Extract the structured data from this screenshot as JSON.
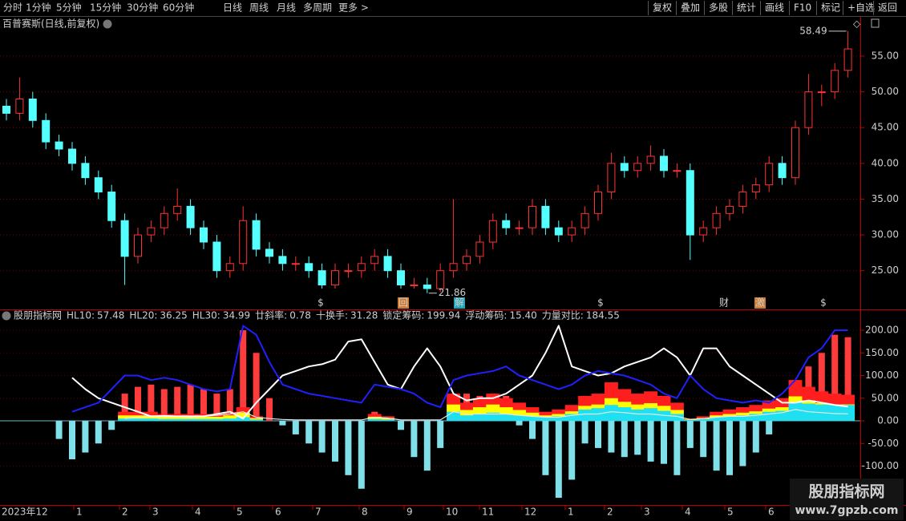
{
  "toolbar": {
    "periods": [
      "分时",
      "1分钟",
      "5分钟",
      "15分钟",
      "30分钟",
      "60分钟",
      "日线",
      "周线",
      "月线",
      "多周期",
      "更多 >"
    ],
    "active_period_index": 6,
    "actions": [
      "复权",
      "叠加",
      "多股",
      "统计",
      "画线",
      "F10",
      "标记",
      "+自选",
      "返回"
    ]
  },
  "chart_title": "百普赛斯(日线,前复权)",
  "indicator_title": "股朋指标网",
  "markers": [
    "$",
    "回",
    "解",
    "$",
    "财",
    "激",
    "$"
  ],
  "x_labels": [
    "2023年12",
    "1",
    "2",
    "3",
    "4",
    "5",
    "6",
    "7",
    "8",
    "9",
    "10",
    "11",
    "12",
    "1",
    "2",
    "3",
    "4",
    "5",
    "6"
  ],
  "watermark": {
    "name": "股朋指标网",
    "url": "www.7gpzb.com"
  },
  "chart_data": [
    {
      "type": "candlestick",
      "up_color": "#ff3232",
      "down_color": "#54ffff",
      "grid": true,
      "ylim": [
        19.7,
        60.6
      ],
      "yticks": [
        {
          "value": 25,
          "label": "25.00"
        },
        {
          "value": 30,
          "label": "30.00"
        },
        {
          "value": 35,
          "label": "35.00"
        },
        {
          "value": 40,
          "label": "40.00"
        },
        {
          "value": 45,
          "label": "45.00"
        },
        {
          "value": 50,
          "label": "50.00"
        },
        {
          "value": 55,
          "label": "55.00"
        }
      ],
      "high_label": 58.49,
      "low_label": 21.86,
      "open": [
        48,
        47,
        49,
        46,
        43,
        42,
        40,
        38,
        36,
        32,
        27,
        30,
        31,
        33,
        34,
        31,
        29,
        25,
        26,
        32,
        28,
        27,
        26,
        26,
        25,
        23,
        25,
        25,
        26,
        27,
        25,
        23,
        23,
        22.5,
        25,
        26,
        27,
        29,
        32,
        31,
        31,
        34,
        31,
        30,
        31,
        33,
        36,
        40,
        39,
        40,
        41,
        39,
        39,
        30,
        31,
        33,
        34,
        36,
        37,
        40,
        38,
        45,
        50,
        50,
        53
      ],
      "high": [
        49,
        52,
        50,
        47,
        44,
        43,
        41,
        39,
        37,
        33,
        31,
        32,
        34,
        36.5,
        35,
        32,
        30,
        27,
        34,
        33,
        29,
        28,
        27,
        27,
        26,
        26,
        26,
        27,
        28,
        28,
        26,
        24,
        24,
        26,
        35,
        28,
        30,
        33,
        33,
        32,
        35,
        35,
        32,
        32,
        34,
        37,
        41.5,
        41,
        41,
        42.5,
        42,
        40,
        40,
        32,
        34,
        35,
        37,
        38,
        41,
        41,
        46,
        52.5,
        51,
        54,
        58.49
      ],
      "low": [
        46,
        46,
        45,
        42,
        41,
        39,
        37,
        35,
        31,
        23,
        26,
        29,
        30,
        32,
        30,
        28,
        24,
        24,
        25,
        27,
        26,
        25,
        25,
        24,
        22.5,
        22.5,
        24,
        24,
        25,
        24,
        22.5,
        22.5,
        21.86,
        22,
        24,
        25,
        26,
        28,
        30,
        30,
        30,
        30,
        29,
        29,
        30,
        32,
        35,
        38,
        38,
        39,
        38,
        38,
        26.5,
        29,
        30,
        32,
        33,
        35,
        36,
        37,
        37,
        44,
        48,
        49,
        52
      ],
      "close": [
        47,
        49,
        46,
        43,
        42,
        40,
        38,
        36,
        32,
        27,
        30,
        31,
        33,
        34,
        31,
        29,
        25,
        26,
        32,
        28,
        27,
        26,
        26,
        25,
        23,
        25,
        25,
        26,
        27,
        25,
        23,
        23,
        22.5,
        25,
        26,
        27,
        29,
        32,
        31,
        31,
        34,
        31,
        30,
        31,
        33,
        36,
        40,
        39,
        40,
        41,
        39,
        39,
        30,
        31,
        33,
        34,
        36,
        37,
        40,
        38,
        45,
        50,
        50,
        53,
        56
      ]
    },
    {
      "type": "indicator",
      "grid": true,
      "ylim": [
        -182.3,
        242.5
      ],
      "yticks": [
        {
          "value": -100,
          "label": "-100.00"
        },
        {
          "value": -50,
          "label": "-50.00"
        },
        {
          "value": 0,
          "label": "0.00"
        },
        {
          "value": 50,
          "label": "50.00"
        },
        {
          "value": 100,
          "label": "100.00"
        },
        {
          "value": 150,
          "label": "150.00"
        },
        {
          "value": 200,
          "label": "200.00"
        }
      ],
      "series": [
        {
          "name": "HL10:",
          "color": "#ff3232",
          "mark_color": "#ff1e1e",
          "style": "area",
          "last": 57.48,
          "values": [
            0,
            0,
            0,
            0,
            0,
            0,
            0,
            0,
            0,
            20,
            20,
            20,
            15,
            15,
            15,
            15,
            15,
            20,
            30,
            10,
            0,
            0,
            0,
            0,
            0,
            0,
            0,
            0,
            15,
            10,
            0,
            0,
            0,
            0,
            60,
            40,
            50,
            60,
            50,
            40,
            30,
            20,
            25,
            35,
            55,
            60,
            85,
            70,
            60,
            65,
            55,
            40,
            5,
            10,
            20,
            25,
            30,
            35,
            45,
            50,
            90,
            75,
            65,
            60,
            57.48
          ]
        },
        {
          "name": "HL20:",
          "color": "#ffff00",
          "mark_color": "#ffff00",
          "style": "area",
          "last": 36.25,
          "values": [
            0,
            0,
            0,
            0,
            0,
            0,
            0,
            0,
            0,
            12,
            12,
            12,
            9,
            9,
            9,
            9,
            9,
            12,
            18,
            6,
            0,
            0,
            0,
            0,
            0,
            0,
            0,
            0,
            9,
            6,
            0,
            0,
            0,
            0,
            36,
            24,
            30,
            36,
            30,
            24,
            18,
            12,
            15,
            21,
            33,
            36,
            50,
            42,
            36,
            39,
            33,
            24,
            3,
            6,
            12,
            15,
            18,
            21,
            27,
            30,
            54,
            45,
            39,
            36,
            36.25
          ]
        },
        {
          "name": "HL30:",
          "color": "#ff50ff",
          "mark_color": "#1ee0f0",
          "style": "area",
          "last": 34.99,
          "values": [
            0,
            0,
            0,
            0,
            0,
            0,
            0,
            0,
            0,
            5,
            5,
            5,
            4,
            4,
            4,
            4,
            4,
            5,
            8,
            3,
            0,
            0,
            0,
            0,
            0,
            0,
            0,
            0,
            4,
            3,
            0,
            0,
            0,
            0,
            20,
            12,
            15,
            18,
            15,
            12,
            10,
            8,
            10,
            15,
            25,
            28,
            35,
            30,
            25,
            28,
            22,
            15,
            2,
            4,
            8,
            10,
            12,
            15,
            20,
            22,
            40,
            38,
            36,
            35,
            34.99
          ]
        },
        {
          "name": "廿斜率:",
          "color": "#00ff00",
          "style": "none",
          "last": 0.78
        },
        {
          "name": "十换手:",
          "color": "#ffffff",
          "mark_color": "#ffffff",
          "style": "line",
          "last": 31.28,
          "values": [
            null,
            null,
            null,
            null,
            null,
            95,
            70,
            50,
            40,
            30,
            20,
            10,
            10,
            10,
            10,
            10,
            15,
            20,
            5,
            40,
            70,
            100,
            110,
            120,
            125,
            135,
            175,
            180,
            130,
            80,
            70,
            120,
            160,
            120,
            60,
            45,
            50,
            50,
            60,
            80,
            100,
            150,
            210,
            120,
            110,
            100,
            105,
            120,
            130,
            140,
            160,
            140,
            100,
            160,
            160,
            120,
            100,
            80,
            60,
            40,
            40,
            45,
            40,
            35,
            31.28
          ]
        },
        {
          "name": "锁定筹码:",
          "color": "#3a3aff",
          "mark_color": "#2020ff",
          "style": "line",
          "last": 199.94,
          "values": [
            null,
            null,
            null,
            null,
            null,
            20,
            30,
            40,
            70,
            100,
            100,
            90,
            95,
            90,
            80,
            70,
            65,
            70,
            210,
            190,
            130,
            80,
            70,
            60,
            55,
            50,
            45,
            40,
            80,
            75,
            70,
            60,
            40,
            30,
            90,
            100,
            105,
            110,
            120,
            100,
            90,
            80,
            70,
            80,
            100,
            110,
            105,
            100,
            90,
            80,
            60,
            50,
            100,
            70,
            50,
            45,
            40,
            45,
            40,
            60,
            90,
            140,
            160,
            200,
            199.94
          ]
        },
        {
          "name": "浮动筹码:",
          "color": "#ffffff",
          "mark_color": "#e8e8e8",
          "style": "thin-line",
          "last": 15.4,
          "last_label": "15.40",
          "values": [
            null,
            null,
            null,
            null,
            null,
            null,
            null,
            null,
            null,
            5,
            8,
            10,
            12,
            10,
            8,
            10,
            12,
            15,
            20,
            8,
            5,
            3,
            2,
            2,
            2,
            2,
            2,
            2,
            8,
            6,
            2,
            2,
            2,
            2,
            20,
            15,
            15,
            15,
            15,
            12,
            10,
            8,
            8,
            12,
            15,
            15,
            20,
            18,
            15,
            15,
            12,
            10,
            3,
            5,
            8,
            10,
            10,
            12,
            15,
            18,
            25,
            20,
            18,
            16,
            15.4
          ]
        },
        {
          "name": "力量对比:",
          "color": "#ffd966",
          "style": "bars",
          "up_color": "#ff3c3c",
          "down_color": "#7fe0ea",
          "last": 184.55,
          "values": [
            0,
            0,
            0,
            0,
            -40,
            -85,
            -70,
            -50,
            -20,
            60,
            75,
            80,
            70,
            75,
            80,
            70,
            60,
            70,
            200,
            150,
            50,
            -10,
            -30,
            -50,
            -70,
            -90,
            -120,
            -150,
            20,
            10,
            -20,
            -80,
            -110,
            -60,
            50,
            60,
            55,
            60,
            55,
            -10,
            -40,
            -120,
            -170,
            -130,
            -50,
            -60,
            -70,
            -80,
            -75,
            -90,
            -95,
            -120,
            -60,
            -80,
            -110,
            -120,
            -100,
            -70,
            -30,
            20,
            90,
            120,
            150,
            190,
            184.55
          ]
        }
      ]
    }
  ]
}
